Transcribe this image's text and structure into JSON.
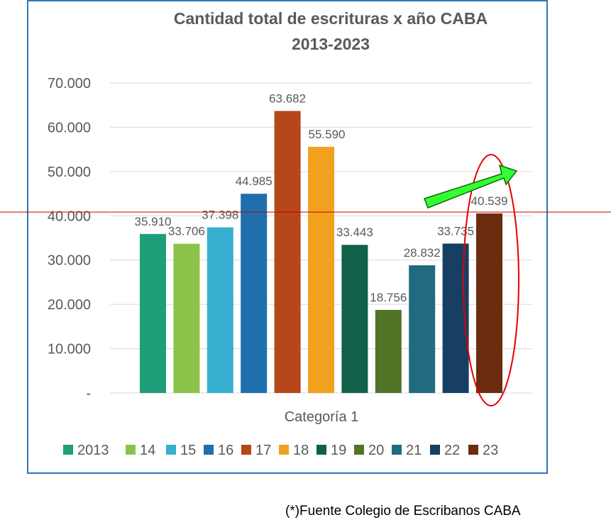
{
  "chart_data": {
    "type": "bar",
    "title": [
      "Cantidad total de escrituras x año CABA",
      "2013-2023"
    ],
    "xlabel": "Categoría 1",
    "ylabel": "",
    "categories": [
      "Categoría 1"
    ],
    "series": [
      {
        "name": "2013",
        "value": 35910,
        "label": "35.910",
        "color": "#1f9e7a"
      },
      {
        "name": "14",
        "value": 33706,
        "label": "33.706",
        "color": "#8bc34a"
      },
      {
        "name": "15",
        "value": 37398,
        "label": "37.398",
        "color": "#36afd1"
      },
      {
        "name": "16",
        "value": 44985,
        "label": "44.985",
        "color": "#1f6fad"
      },
      {
        "name": "17",
        "value": 63682,
        "label": "63.682",
        "color": "#b5471a"
      },
      {
        "name": "18",
        "value": 55590,
        "label": "55.590",
        "color": "#f2a11f"
      },
      {
        "name": "19",
        "value": 33443,
        "label": "33.443",
        "color": "#11604a"
      },
      {
        "name": "20",
        "value": 18756,
        "label": "18.756",
        "color": "#517527"
      },
      {
        "name": "21",
        "value": 28832,
        "label": "28.832",
        "color": "#216b80"
      },
      {
        "name": "22",
        "value": 33735,
        "label": "33.735",
        "color": "#163f63"
      },
      {
        "name": "23",
        "value": 40539,
        "label": "40.539",
        "color": "#6b2c10"
      }
    ],
    "ylim": [
      0,
      70000
    ],
    "yticks": [
      {
        "value": 0,
        "label": "-"
      },
      {
        "value": 10000,
        "label": "10.000"
      },
      {
        "value": 20000,
        "label": "20.000"
      },
      {
        "value": 30000,
        "label": "30.000"
      },
      {
        "value": 40000,
        "label": "40.000"
      },
      {
        "value": 50000,
        "label": "50.000"
      },
      {
        "value": 60000,
        "label": "60.000"
      },
      {
        "value": 70000,
        "label": "70.000"
      }
    ],
    "grid": true,
    "legend_position": "bottom",
    "annotations": {
      "reference_line_color": "#c00000",
      "ellipse_color": "#e00000",
      "arrow_fill": "#33ff33",
      "arrow_stroke": "#0a6a0a"
    }
  },
  "source_note": "(*)Fuente Colegio de Escribanos CABA"
}
